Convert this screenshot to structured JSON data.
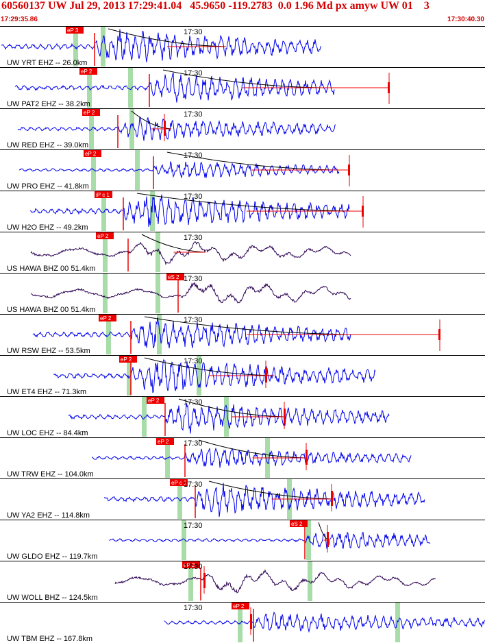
{
  "header": {
    "title": "60560137 UW Jul 29, 2013 17:29:41.04   45.9650 -119.2783  0.0 1.96 Md px amyw UW 01    3",
    "time_start": "17:29:35.86",
    "time_end": "17:30:40.30"
  },
  "minute_mark": "17:30",
  "colors": {
    "vertical": "#0000ee",
    "broadband": "#2a0050",
    "pick": "#ee0000",
    "window": "#a8dca8",
    "coda": "#000000"
  },
  "traces": [
    {
      "label": "UW YRT EHZ -- 26.0km",
      "pick": "eP 3"
    },
    {
      "label": "UW PAT2 EHZ -- 38.2km",
      "pick": "eP 2"
    },
    {
      "label": "UW RED EHZ -- 39.0km",
      "pick": "eP 2"
    },
    {
      "label": "UW PRO EHZ -- 41.8km",
      "pick": "eP 2"
    },
    {
      "label": "UW H2O EHZ -- 49.2km",
      "pick": "iP c 1"
    },
    {
      "label": "US HAWA BHZ 00 51.4km",
      "pick": "eP 2"
    },
    {
      "label": "US HAWA BHZ 00 51.4km",
      "pick": "eS 2"
    },
    {
      "label": "UW RSW EHZ -- 53.5km",
      "pick": "eP 2"
    },
    {
      "label": "UW ET4 EHZ -- 71.3km",
      "pick": "eP 2"
    },
    {
      "label": "UW LOC EHZ -- 84.4km",
      "pick": "eP 2"
    },
    {
      "label": "UW TRW EHZ -- 104.0km",
      "pick": "eP 2"
    },
    {
      "label": "UW YA2 EHZ -- 114.8km",
      "pick": "eP c 1"
    },
    {
      "label": "UW GLDO EHZ -- 119.7km",
      "pick": "eS 2"
    },
    {
      "label": "UW WOLL BHZ -- 124.5km",
      "pick": "eP 2"
    },
    {
      "label": "UW TBM EHZ -- 167.8km",
      "pick": "eP 2"
    }
  ]
}
